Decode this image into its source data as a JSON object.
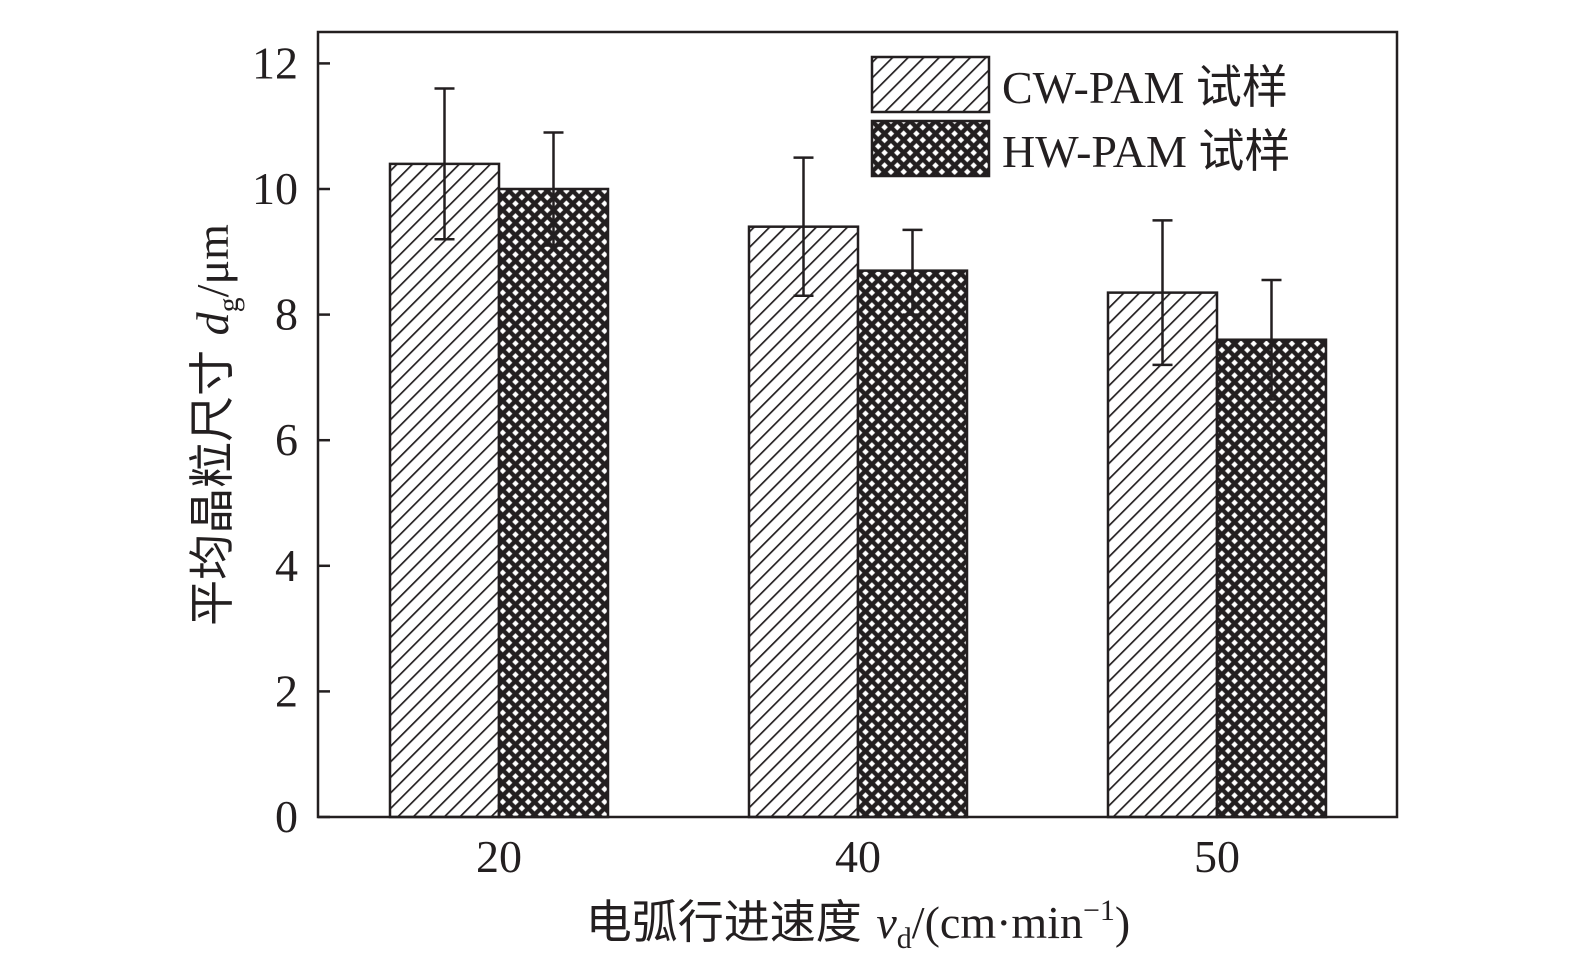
{
  "chart_data": {
    "type": "bar",
    "categories": [
      "20",
      "40",
      "50"
    ],
    "series": [
      {
        "name": "CW-PAM 试样",
        "pattern": "diagonal-hatch",
        "values": [
          10.4,
          9.4,
          8.35
        ],
        "error": [
          [
            9.2,
            11.6
          ],
          [
            8.3,
            10.5
          ],
          [
            7.2,
            9.5
          ]
        ]
      },
      {
        "name": "HW-PAM 试样",
        "pattern": "crosshatch",
        "values": [
          10.0,
          8.7,
          7.6
        ],
        "error": [
          [
            9.1,
            10.9
          ],
          [
            8.0,
            9.35
          ],
          [
            6.65,
            8.55
          ]
        ]
      }
    ],
    "ylim": [
      0,
      12.5
    ],
    "yticks": [
      "0",
      "2",
      "4",
      "6",
      "8",
      "10",
      "12"
    ],
    "xlabel": {
      "prefix": "电弧行进速度 ",
      "var": "v",
      "sub": "d",
      "unit_open": "/(cm·min",
      "sup": "−1",
      "unit_close": ")"
    },
    "ylabel": {
      "prefix": "平均晶粒尺寸 ",
      "var": "d",
      "sub": "g",
      "unit": "/μm"
    },
    "legend_position": "top-right",
    "grid": false,
    "colors": {
      "ink": "#231f20",
      "background": "#ffffff"
    }
  }
}
